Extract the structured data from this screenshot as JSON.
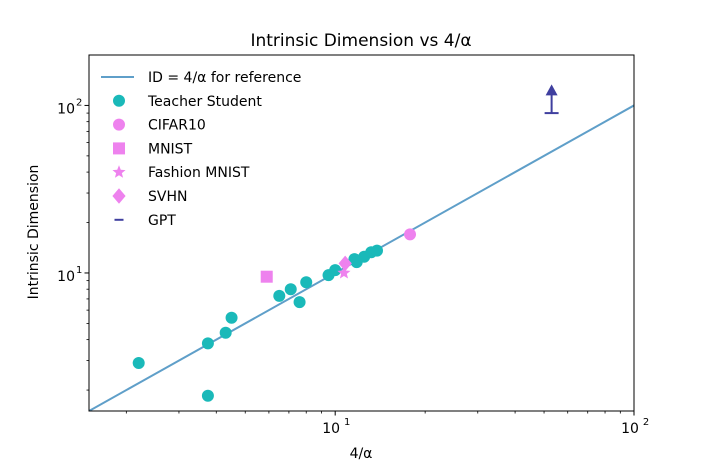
{
  "chart_data": {
    "type": "scatter",
    "title": "Intrinsic Dimension vs 4/α",
    "xlabel": "4/α",
    "ylabel": "Intrinsic Dimension",
    "xscale": "log",
    "yscale": "log",
    "xlim": [
      1.5,
      100
    ],
    "ylim": [
      1.5,
      200
    ],
    "x_ticks": [
      {
        "value": 10,
        "base": "10",
        "exp": "1"
      },
      {
        "value": 100,
        "base": "10",
        "exp": "2"
      }
    ],
    "y_ticks": [
      {
        "value": 10,
        "base": "10",
        "exp": "1"
      },
      {
        "value": 100,
        "base": "10",
        "exp": "2"
      }
    ],
    "legend_position": "top-left",
    "reference_line": {
      "label": "ID = 4/α for reference",
      "color": "#5f9fc9",
      "points": [
        [
          1.5,
          1.5
        ],
        [
          100,
          100
        ]
      ]
    },
    "series": [
      {
        "name": "Teacher Student",
        "marker": "circle",
        "color": "#1ab9b9",
        "points": [
          [
            2.2,
            2.9
          ],
          [
            3.75,
            3.8
          ],
          [
            3.75,
            1.85
          ],
          [
            4.3,
            4.4
          ],
          [
            4.5,
            5.4
          ],
          [
            6.5,
            7.3
          ],
          [
            7.1,
            8.0
          ],
          [
            7.6,
            6.7
          ],
          [
            8.0,
            8.8
          ],
          [
            9.5,
            9.7
          ],
          [
            10.0,
            10.4
          ],
          [
            11.6,
            12.1
          ],
          [
            11.8,
            11.6
          ],
          [
            12.5,
            12.5
          ],
          [
            13.2,
            13.3
          ],
          [
            13.8,
            13.6
          ]
        ]
      },
      {
        "name": "CIFAR10",
        "marker": "circle",
        "color": "#ee82ee",
        "points": [
          [
            17.8,
            17.0
          ]
        ]
      },
      {
        "name": "MNIST",
        "marker": "square",
        "color": "#ee82ee",
        "points": [
          [
            5.9,
            9.5
          ]
        ]
      },
      {
        "name": "Fashion MNIST",
        "marker": "star",
        "color": "#ee82ee",
        "points": [
          [
            10.7,
            10.0
          ]
        ]
      },
      {
        "name": "SVHN",
        "marker": "diamond",
        "color": "#ee82ee",
        "points": [
          [
            10.8,
            11.4
          ]
        ]
      },
      {
        "name": "GPT",
        "marker": "hline",
        "color": "#3f3f9f",
        "points": [
          [
            53,
            90
          ]
        ],
        "arrow_to": 130
      }
    ]
  }
}
